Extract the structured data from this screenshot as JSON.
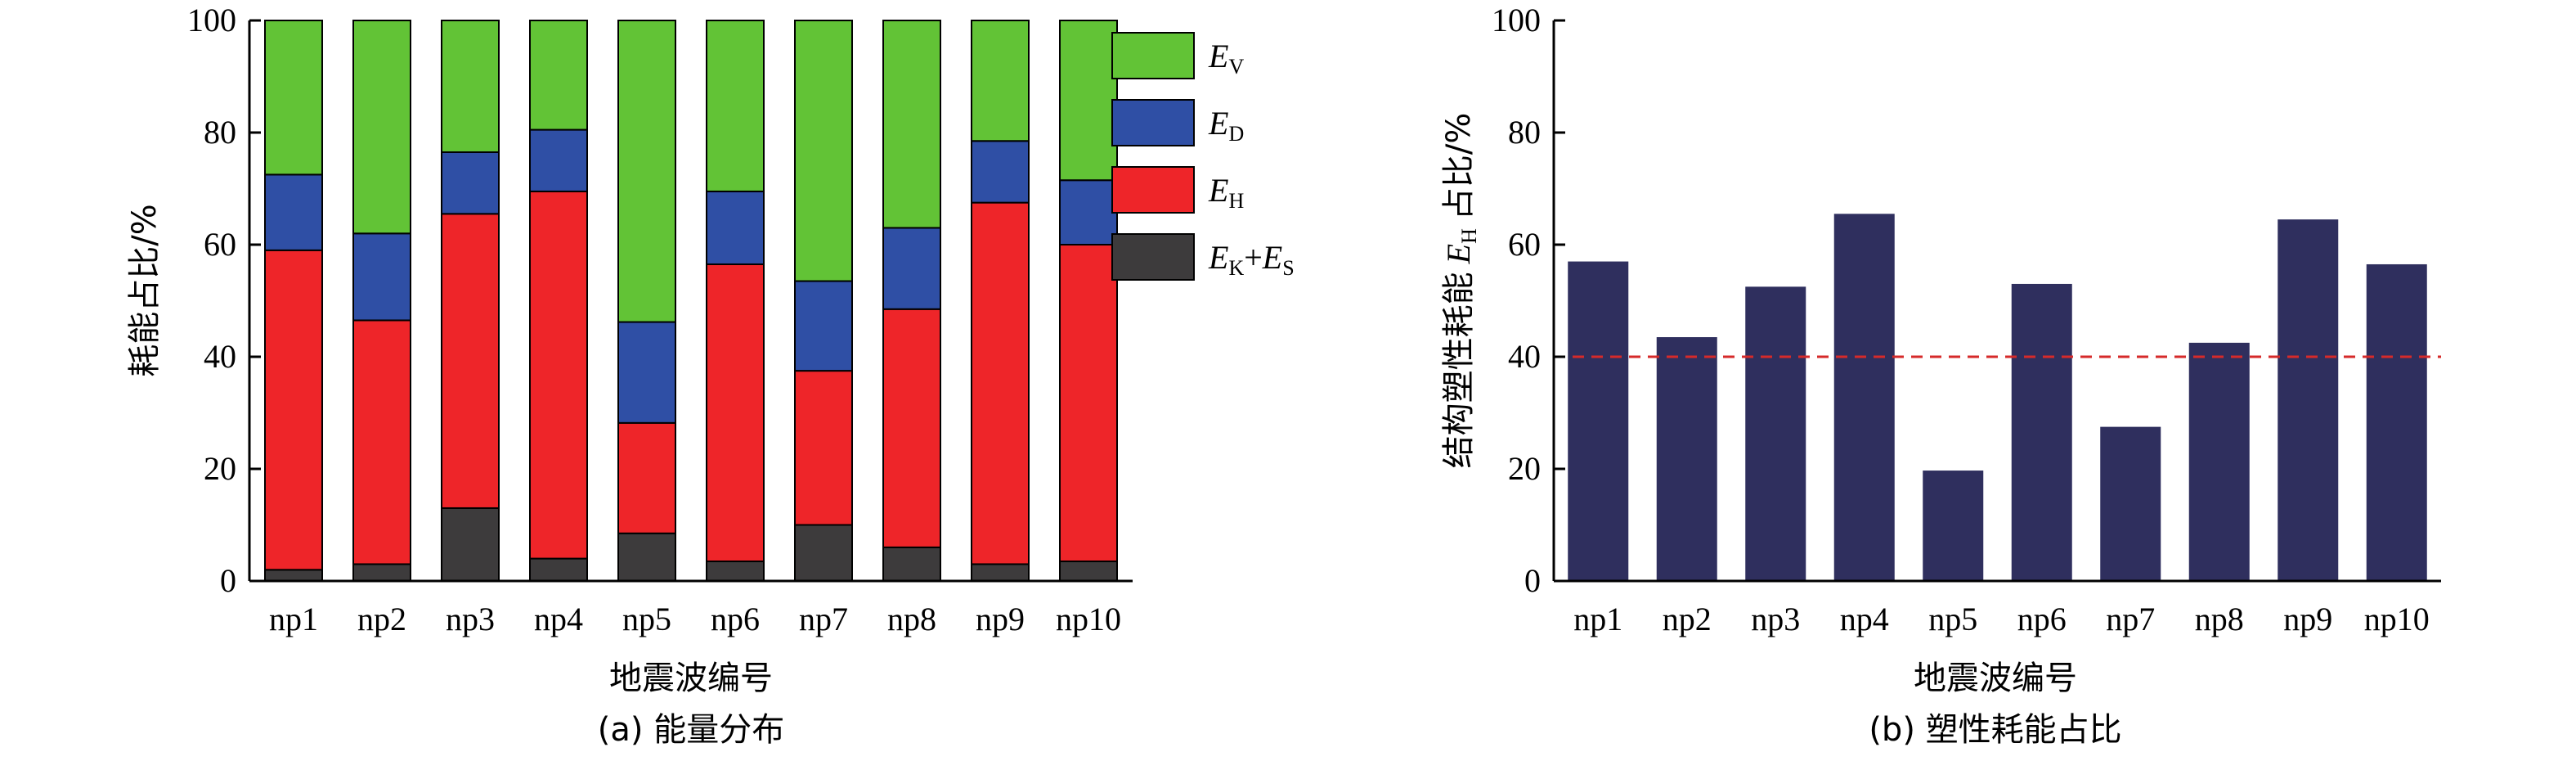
{
  "chart_data": [
    {
      "type": "bar",
      "stacked": true,
      "categories": [
        "np1",
        "np2",
        "np3",
        "np4",
        "np5",
        "np6",
        "np7",
        "np8",
        "np9",
        "np10"
      ],
      "series": [
        {
          "name": "E_K+E_S",
          "label_main": "E",
          "label_sub": "K",
          "label_mid": "+",
          "label_main2": "E",
          "label_sub2": "S",
          "color": "#3d3b3c",
          "values": [
            2,
            3,
            13,
            4,
            8.5,
            3.5,
            10,
            6,
            3,
            3.5
          ]
        },
        {
          "name": "E_H",
          "label_main": "E",
          "label_sub": "H",
          "color": "#ee2529",
          "values": [
            57,
            43.5,
            52.5,
            65.5,
            19.7,
            53,
            27.5,
            42.5,
            64.5,
            56.5
          ]
        },
        {
          "name": "E_D",
          "label_main": "E",
          "label_sub": "D",
          "color": "#2f4fa5",
          "values": [
            13.5,
            15.5,
            11,
            11,
            18,
            13,
            16,
            14.5,
            11,
            11.5
          ]
        },
        {
          "name": "E_V",
          "label_main": "E",
          "label_sub": "V",
          "color": "#62c336",
          "values": [
            27.5,
            38,
            23.5,
            19.5,
            53.8,
            30.5,
            46.5,
            37,
            21.5,
            28.5
          ]
        }
      ],
      "ylabel": "耗能占比/%",
      "xlabel": "地震波编号",
      "caption": "(a) 能量分布",
      "ylim": [
        0,
        100
      ],
      "yticks": [
        0,
        20,
        40,
        60,
        80,
        100
      ],
      "legend": "right-outside"
    },
    {
      "type": "bar",
      "categories": [
        "np1",
        "np2",
        "np3",
        "np4",
        "np5",
        "np6",
        "np7",
        "np8",
        "np9",
        "np10"
      ],
      "values": [
        57,
        43.5,
        52.5,
        65.5,
        19.7,
        53,
        27.5,
        42.5,
        64.5,
        56.5
      ],
      "color": "#2f2f5e",
      "ylabel_prefix": "结构塑性耗能",
      "ylabel_main": "E",
      "ylabel_sub": "H",
      "ylabel_suffix": "占比/%",
      "xlabel": "地震波编号",
      "caption": "(b) 塑性耗能占比",
      "ylim": [
        0,
        100
      ],
      "yticks": [
        0,
        20,
        40,
        60,
        80,
        100
      ],
      "reference_line": {
        "y": 40,
        "color": "#d62a2a",
        "style": "dashed"
      }
    }
  ]
}
